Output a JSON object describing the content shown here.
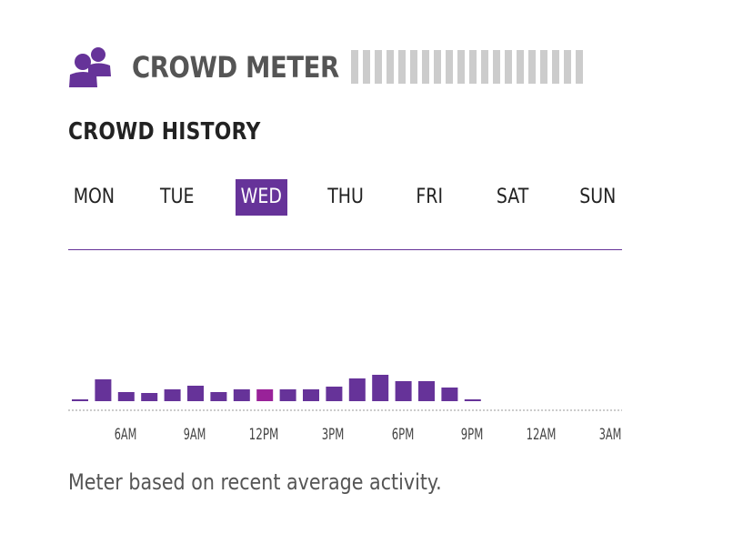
{
  "header": {
    "title": "CROWD METER",
    "icon": "people-icon",
    "icon_color": "#663399",
    "meter": {
      "segments": 20,
      "filled": 0,
      "color": "#cccccc"
    }
  },
  "history": {
    "title": "CROWD HISTORY",
    "days": [
      {
        "label": "MON",
        "selected": false
      },
      {
        "label": "TUE",
        "selected": false
      },
      {
        "label": "WED",
        "selected": true
      },
      {
        "label": "THU",
        "selected": false
      },
      {
        "label": "FRI",
        "selected": false
      },
      {
        "label": "SAT",
        "selected": false
      },
      {
        "label": "SUN",
        "selected": false
      }
    ]
  },
  "colors": {
    "accent": "#663399",
    "highlight": "#992299",
    "text_dark": "#222222",
    "text_gray": "#555555"
  },
  "chart_data": {
    "type": "bar",
    "categories": [
      "4AM",
      "5AM",
      "6AM",
      "7AM",
      "8AM",
      "9AM",
      "10AM",
      "11AM",
      "12PM",
      "1PM",
      "2PM",
      "3PM",
      "4PM",
      "5PM",
      "6PM",
      "7PM",
      "8PM",
      "9PM"
    ],
    "values": [
      2,
      24,
      10,
      9,
      13,
      17,
      10,
      13,
      13,
      13,
      13,
      16,
      25,
      29,
      22,
      22,
      15,
      2
    ],
    "highlight_index": 8,
    "tick_labels": [
      "6AM",
      "9AM",
      "12PM",
      "3PM",
      "6PM",
      "9PM",
      "12AM",
      "3AM"
    ],
    "ylim": [
      0,
      30
    ],
    "baseline": "dotted"
  },
  "footer": {
    "note": "Meter based on recent average activity."
  }
}
